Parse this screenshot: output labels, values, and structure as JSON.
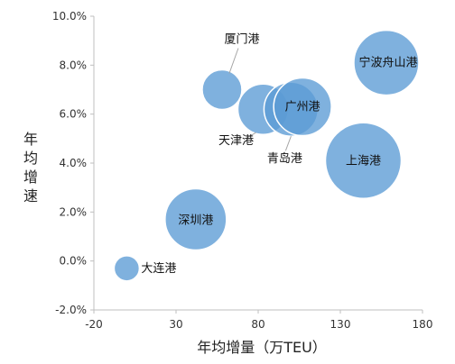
{
  "chart_data": {
    "type": "bubble",
    "xlabel": "年均增量（万TEU）",
    "ylabel": "年均增速",
    "xlim": [
      -20,
      180
    ],
    "ylim": [
      -2.0,
      10.0
    ],
    "xticks": [
      "-20",
      "30",
      "80",
      "130",
      "180"
    ],
    "yticks": [
      "-2.0%",
      "0.0%",
      "2.0%",
      "4.0%",
      "6.0%",
      "8.0%",
      "10.0%"
    ],
    "grid": false,
    "colors": {
      "bubble_fill": "#5b9bd5",
      "bubble_stroke": "#ffffff",
      "axis": "#bfbfbf",
      "leader": "#a6a6a6"
    },
    "points": [
      {
        "name": "大连港",
        "x": 0,
        "y": -0.3,
        "size": 14
      },
      {
        "name": "深圳港",
        "x": 42,
        "y": 1.7,
        "size": 34
      },
      {
        "name": "厦门港",
        "x": 58,
        "y": 7.0,
        "size": 22
      },
      {
        "name": "天津港",
        "x": 83,
        "y": 6.2,
        "size": 28
      },
      {
        "name": "青岛港",
        "x": 100,
        "y": 6.2,
        "size": 30
      },
      {
        "name": "广州港",
        "x": 107,
        "y": 6.3,
        "size": 32
      },
      {
        "name": "上海港",
        "x": 144,
        "y": 4.1,
        "size": 42
      },
      {
        "name": "宁波舟山港",
        "x": 158,
        "y": 8.1,
        "size": 36
      }
    ]
  }
}
